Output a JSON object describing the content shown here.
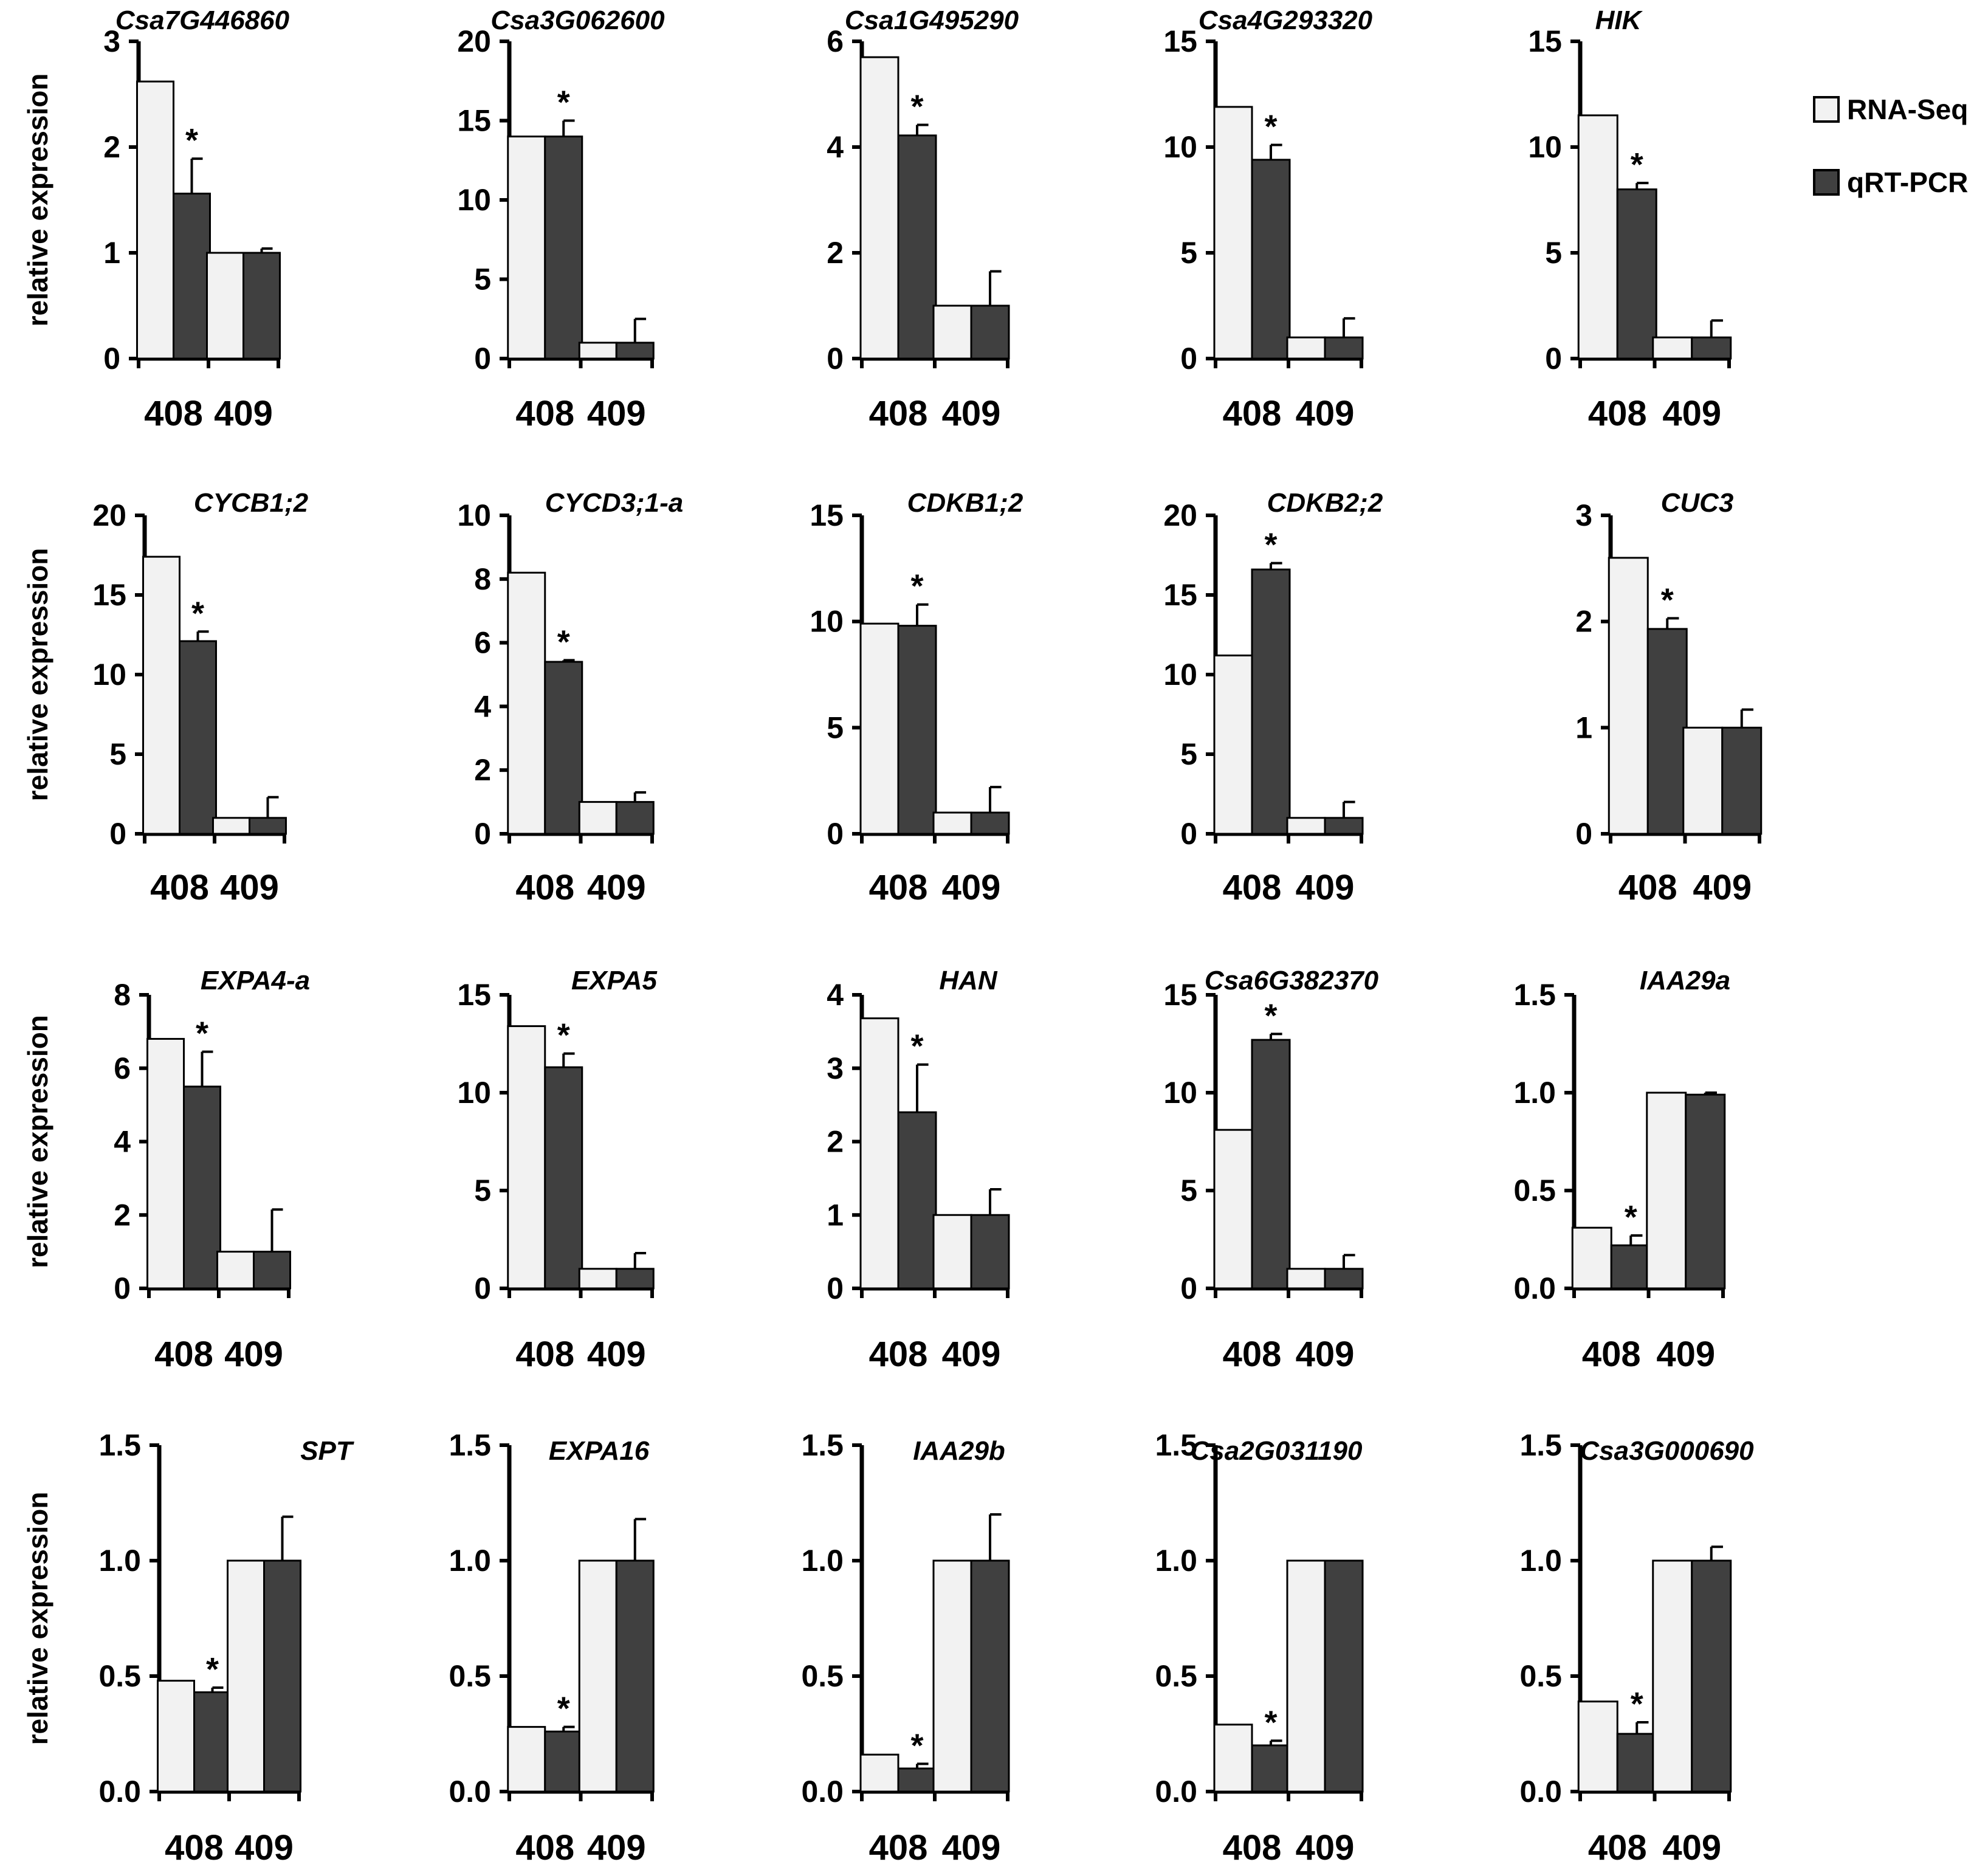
{
  "legend": {
    "items": [
      {
        "label": "RNA-Seq",
        "color": "#f2f2f2"
      },
      {
        "label": "qRT-PCR",
        "color": "#404040"
      }
    ]
  },
  "colors": {
    "rna": "#f2f2f2",
    "qpcr": "#404040",
    "axis": "#000000"
  },
  "chart_data": [
    {
      "type": "bar",
      "title": "Csa7G446860",
      "ylabel": "relative expression",
      "categories": [
        "408",
        "409"
      ],
      "ylim": [
        0,
        3
      ],
      "yticks": [
        "0",
        "1",
        "2",
        "3"
      ],
      "series": [
        {
          "name": "RNA-Seq",
          "values": [
            2.62,
            1.0
          ]
        },
        {
          "name": "qRT-PCR",
          "values": [
            1.56,
            1.0
          ],
          "errors": [
            0.33,
            0.04
          ]
        }
      ],
      "significant": [
        true,
        false
      ]
    },
    {
      "type": "bar",
      "title": "Csa3G062600",
      "ylabel": "",
      "categories": [
        "408",
        "409"
      ],
      "ylim": [
        0,
        20
      ],
      "yticks": [
        "0",
        "5",
        "10",
        "15",
        "20"
      ],
      "series": [
        {
          "name": "RNA-Seq",
          "values": [
            14.0,
            1.0
          ]
        },
        {
          "name": "qRT-PCR",
          "values": [
            14.0,
            1.0
          ],
          "errors": [
            1.0,
            1.5
          ]
        }
      ],
      "significant": [
        true,
        false
      ]
    },
    {
      "type": "bar",
      "title": "Csa1G495290",
      "ylabel": "",
      "categories": [
        "408",
        "409"
      ],
      "ylim": [
        0,
        6
      ],
      "yticks": [
        "0",
        "2",
        "4",
        "6"
      ],
      "series": [
        {
          "name": "RNA-Seq",
          "values": [
            5.7,
            1.0
          ]
        },
        {
          "name": "qRT-PCR",
          "values": [
            4.22,
            1.0
          ],
          "errors": [
            0.2,
            0.65
          ]
        }
      ],
      "significant": [
        true,
        false
      ]
    },
    {
      "type": "bar",
      "title": "Csa4G293320",
      "ylabel": "",
      "categories": [
        "408",
        "409"
      ],
      "ylim": [
        0,
        15
      ],
      "yticks": [
        "0",
        "5",
        "10",
        "15"
      ],
      "series": [
        {
          "name": "RNA-Seq",
          "values": [
            11.9,
            1.0
          ]
        },
        {
          "name": "qRT-PCR",
          "values": [
            9.4,
            1.0
          ],
          "errors": [
            0.7,
            0.9
          ]
        }
      ],
      "significant": [
        true,
        false
      ]
    },
    {
      "type": "bar",
      "title": "HIK",
      "ylabel": "",
      "categories": [
        "408",
        "409"
      ],
      "ylim": [
        0,
        15
      ],
      "yticks": [
        "0",
        "5",
        "10",
        "15"
      ],
      "series": [
        {
          "name": "RNA-Seq",
          "values": [
            11.5,
            1.0
          ]
        },
        {
          "name": "qRT-PCR",
          "values": [
            8.0,
            1.0
          ],
          "errors": [
            0.3,
            0.8
          ]
        }
      ],
      "significant": [
        true,
        false
      ]
    },
    {
      "type": "bar",
      "title": "CYCB1;2",
      "ylabel": "relative expression",
      "categories": [
        "408",
        "409"
      ],
      "ylim": [
        0,
        20
      ],
      "yticks": [
        "0",
        "5",
        "10",
        "15",
        "20"
      ],
      "series": [
        {
          "name": "RNA-Seq",
          "values": [
            17.4,
            1.0
          ]
        },
        {
          "name": "qRT-PCR",
          "values": [
            12.1,
            1.0
          ],
          "errors": [
            0.6,
            1.3
          ]
        }
      ],
      "significant": [
        true,
        false
      ]
    },
    {
      "type": "bar",
      "title": "CYCD3;1-a",
      "ylabel": "",
      "categories": [
        "408",
        "409"
      ],
      "ylim": [
        0,
        10
      ],
      "yticks": [
        "0",
        "2",
        "4",
        "6",
        "8",
        "10"
      ],
      "series": [
        {
          "name": "RNA-Seq",
          "values": [
            8.2,
            1.0
          ]
        },
        {
          "name": "qRT-PCR",
          "values": [
            5.4,
            1.0
          ],
          "errors": [
            0.05,
            0.3
          ]
        }
      ],
      "significant": [
        true,
        false
      ]
    },
    {
      "type": "bar",
      "title": "CDKB1;2",
      "ylabel": "",
      "categories": [
        "408",
        "409"
      ],
      "ylim": [
        0,
        15
      ],
      "yticks": [
        "0",
        "5",
        "10",
        "15"
      ],
      "series": [
        {
          "name": "RNA-Seq",
          "values": [
            9.9,
            1.0
          ]
        },
        {
          "name": "qRT-PCR",
          "values": [
            9.8,
            1.0
          ],
          "errors": [
            1.0,
            1.2
          ]
        }
      ],
      "significant": [
        true,
        false
      ]
    },
    {
      "type": "bar",
      "title": "CDKB2;2",
      "ylabel": "",
      "categories": [
        "408",
        "409"
      ],
      "ylim": [
        0,
        20
      ],
      "yticks": [
        "0",
        "5",
        "10",
        "15",
        "20"
      ],
      "series": [
        {
          "name": "RNA-Seq",
          "values": [
            11.2,
            1.0
          ]
        },
        {
          "name": "qRT-PCR",
          "values": [
            16.6,
            1.0
          ],
          "errors": [
            0.4,
            1.0
          ]
        }
      ],
      "significant": [
        true,
        false
      ]
    },
    {
      "type": "bar",
      "title": "CUC3",
      "ylabel": "",
      "categories": [
        "408",
        "409"
      ],
      "ylim": [
        0,
        3
      ],
      "yticks": [
        "0",
        "1",
        "2",
        "3"
      ],
      "series": [
        {
          "name": "RNA-Seq",
          "values": [
            2.6,
            1.0
          ]
        },
        {
          "name": "qRT-PCR",
          "values": [
            1.93,
            1.0
          ],
          "errors": [
            0.1,
            0.17
          ]
        }
      ],
      "significant": [
        true,
        false
      ]
    },
    {
      "type": "bar",
      "title": "EXPA4-a",
      "ylabel": "relative expression",
      "categories": [
        "408",
        "409"
      ],
      "ylim": [
        0,
        8
      ],
      "yticks": [
        "0",
        "2",
        "4",
        "6",
        "8"
      ],
      "series": [
        {
          "name": "RNA-Seq",
          "values": [
            6.8,
            1.0
          ]
        },
        {
          "name": "qRT-PCR",
          "values": [
            5.5,
            1.0
          ],
          "errors": [
            0.95,
            1.15
          ]
        }
      ],
      "significant": [
        true,
        false
      ]
    },
    {
      "type": "bar",
      "title": "EXPA5",
      "ylabel": "",
      "categories": [
        "408",
        "409"
      ],
      "ylim": [
        0,
        15
      ],
      "yticks": [
        "0",
        "5",
        "10",
        "15"
      ],
      "series": [
        {
          "name": "RNA-Seq",
          "values": [
            13.4,
            1.0
          ]
        },
        {
          "name": "qRT-PCR",
          "values": [
            11.3,
            1.0
          ],
          "errors": [
            0.7,
            0.8
          ]
        }
      ],
      "significant": [
        true,
        false
      ]
    },
    {
      "type": "bar",
      "title": "HAN",
      "ylabel": "",
      "categories": [
        "408",
        "409"
      ],
      "ylim": [
        0,
        4
      ],
      "yticks": [
        "0",
        "1",
        "2",
        "3",
        "4"
      ],
      "series": [
        {
          "name": "RNA-Seq",
          "values": [
            3.68,
            1.0
          ]
        },
        {
          "name": "qRT-PCR",
          "values": [
            2.4,
            1.0
          ],
          "errors": [
            0.65,
            0.35
          ]
        }
      ],
      "significant": [
        true,
        false
      ]
    },
    {
      "type": "bar",
      "title": "Csa6G382370",
      "ylabel": "",
      "categories": [
        "408",
        "409"
      ],
      "ylim": [
        0,
        15
      ],
      "yticks": [
        "0",
        "5",
        "10",
        "15"
      ],
      "series": [
        {
          "name": "RNA-Seq",
          "values": [
            8.1,
            1.0
          ]
        },
        {
          "name": "qRT-PCR",
          "values": [
            12.7,
            1.0
          ],
          "errors": [
            0.3,
            0.7
          ]
        }
      ],
      "significant": [
        true,
        false
      ]
    },
    {
      "type": "bar",
      "title": "IAA29a",
      "ylabel": "",
      "categories": [
        "408",
        "409"
      ],
      "ylim": [
        0,
        1.5
      ],
      "yticks": [
        "0.0",
        "0.5",
        "1.0",
        "1.5"
      ],
      "series": [
        {
          "name": "RNA-Seq",
          "values": [
            0.31,
            1.0
          ]
        },
        {
          "name": "qRT-PCR",
          "values": [
            0.22,
            0.99
          ],
          "errors": [
            0.05,
            0.01
          ]
        }
      ],
      "significant": [
        true,
        false
      ]
    },
    {
      "type": "bar",
      "title": "SPT",
      "ylabel": "relative expression",
      "categories": [
        "408",
        "409"
      ],
      "ylim": [
        0,
        1.5
      ],
      "yticks": [
        "0.0",
        "0.5",
        "1.0",
        "1.5"
      ],
      "series": [
        {
          "name": "RNA-Seq",
          "values": [
            0.48,
            1.0
          ]
        },
        {
          "name": "qRT-PCR",
          "values": [
            0.43,
            1.0
          ],
          "errors": [
            0.02,
            0.19
          ]
        }
      ],
      "significant": [
        true,
        false
      ]
    },
    {
      "type": "bar",
      "title": "EXPA16",
      "ylabel": "",
      "categories": [
        "408",
        "409"
      ],
      "ylim": [
        0,
        1.5
      ],
      "yticks": [
        "0.0",
        "0.5",
        "1.0",
        "1.5"
      ],
      "series": [
        {
          "name": "RNA-Seq",
          "values": [
            0.28,
            1.0
          ]
        },
        {
          "name": "qRT-PCR",
          "values": [
            0.26,
            1.0
          ],
          "errors": [
            0.02,
            0.18
          ]
        }
      ],
      "significant": [
        true,
        false
      ]
    },
    {
      "type": "bar",
      "title": "IAA29b",
      "ylabel": "",
      "categories": [
        "408",
        "409"
      ],
      "ylim": [
        0,
        1.5
      ],
      "yticks": [
        "0.0",
        "0.5",
        "1.0",
        "1.5"
      ],
      "series": [
        {
          "name": "RNA-Seq",
          "values": [
            0.16,
            1.0
          ]
        },
        {
          "name": "qRT-PCR",
          "values": [
            0.1,
            1.0
          ],
          "errors": [
            0.02,
            0.2
          ]
        }
      ],
      "significant": [
        true,
        false
      ]
    },
    {
      "type": "bar",
      "title": "Csa2G031190",
      "ylabel": "",
      "categories": [
        "408",
        "409"
      ],
      "ylim": [
        0,
        1.5
      ],
      "yticks": [
        "0.0",
        "0.5",
        "1.0",
        "1.5"
      ],
      "series": [
        {
          "name": "RNA-Seq",
          "values": [
            0.29,
            1.0
          ]
        },
        {
          "name": "qRT-PCR",
          "values": [
            0.2,
            1.0
          ],
          "errors": [
            0.02,
            0.0
          ]
        }
      ],
      "significant": [
        true,
        false
      ]
    },
    {
      "type": "bar",
      "title": "Csa3G000690",
      "ylabel": "",
      "categories": [
        "408",
        "409"
      ],
      "ylim": [
        0,
        1.5
      ],
      "yticks": [
        "0.0",
        "0.5",
        "1.0",
        "1.5"
      ],
      "series": [
        {
          "name": "RNA-Seq",
          "values": [
            0.39,
            1.0
          ]
        },
        {
          "name": "qRT-PCR",
          "values": [
            0.25,
            1.0
          ],
          "errors": [
            0.05,
            0.06
          ]
        }
      ],
      "significant": [
        true,
        false
      ]
    }
  ]
}
